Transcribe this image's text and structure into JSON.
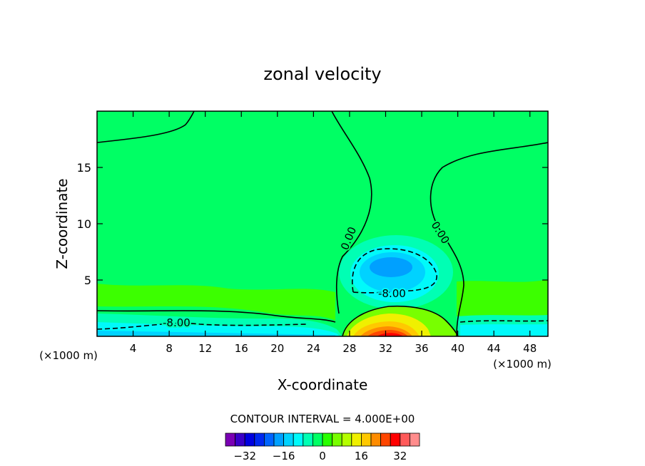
{
  "chart_data": {
    "type": "heatmap",
    "title": "zonal velocity",
    "xlabel": "X-coordinate",
    "ylabel": "Z-coordinate",
    "x_unit": "(×1000 m)",
    "x_unit_right": "(×1000 m)",
    "xlim": [
      0,
      50
    ],
    "ylim": [
      0,
      20
    ],
    "x_ticks": [
      4,
      8,
      12,
      16,
      20,
      24,
      28,
      32,
      36,
      40,
      44,
      48
    ],
    "y_ticks": [
      5,
      10,
      15
    ],
    "contour_interval_text": "CONTOUR INTERVAL = 4.000E+00",
    "colorbar": {
      "levels": [
        -36,
        -32,
        -28,
        -24,
        -20,
        -16,
        -12,
        -8,
        -4,
        0,
        4,
        8,
        12,
        16,
        20,
        24,
        28,
        32,
        36
      ],
      "tick_labels": [
        {
          "value": -32,
          "label": "−32"
        },
        {
          "value": -16,
          "label": "−16"
        },
        {
          "value": 0,
          "label": "0"
        },
        {
          "value": 16,
          "label": "16"
        },
        {
          "value": 32,
          "label": "32"
        }
      ],
      "colors": [
        "#7a00b4",
        "#3a00c8",
        "#0000e0",
        "#0028f0",
        "#0064ff",
        "#00a0ff",
        "#00d2ff",
        "#00fafa",
        "#00ffb4",
        "#00ff64",
        "#28ff00",
        "#78ff00",
        "#b4ff00",
        "#f0f000",
        "#ffc800",
        "#ff8c00",
        "#ff4600",
        "#ff0000",
        "#ff5a5a",
        "#ff8c8c",
        "#ffb4b4"
      ]
    },
    "contour_labels": [
      {
        "text": "0.00",
        "x": 27.7,
        "z": 7.2,
        "angle": -68
      },
      {
        "text": "0.00",
        "x": 38.1,
        "z": 9.2,
        "angle": 58
      },
      {
        "text": "-8.00",
        "x": 32.3,
        "z": 3.9,
        "angle": 0
      },
      {
        "text": "-8.00",
        "x": 9.6,
        "z": 1.5,
        "angle": 0
      }
    ]
  }
}
